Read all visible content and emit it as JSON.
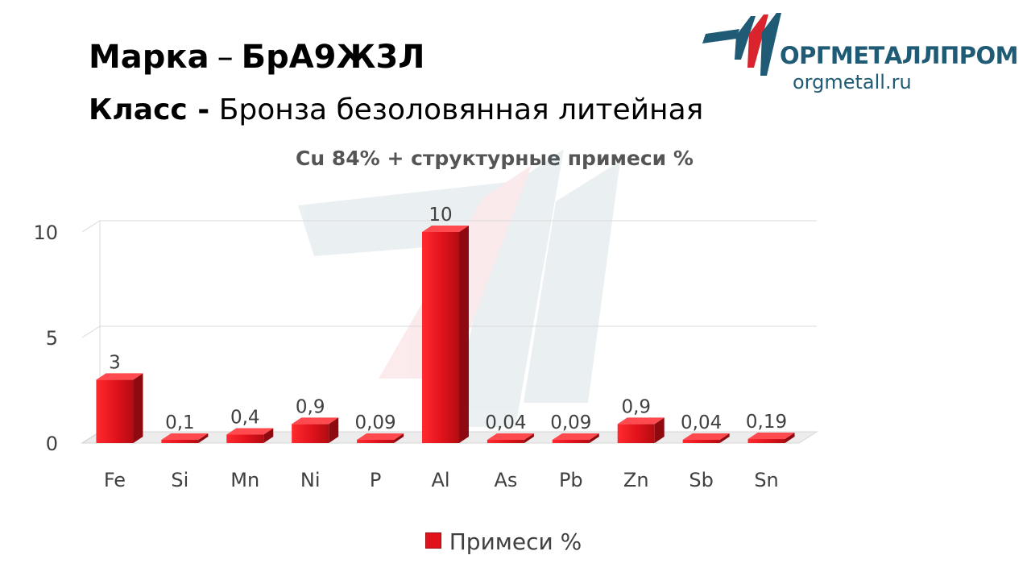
{
  "header": {
    "marka_label": "Марка",
    "marka_dash": "–",
    "marka_value": "БрА9Ж3Л",
    "class_label": "Класс -",
    "class_value": "Бронза безоловянная литейная"
  },
  "logo": {
    "name": "ОРГМЕТАЛЛПРОМ",
    "url": "orgmetall.ru",
    "icon": "orgmetallprom-logo-icon",
    "colors": {
      "blue": "#1f5b75",
      "red": "#d9232d"
    }
  },
  "chart_data": {
    "type": "bar",
    "title": "Cu 84% + структурные примеси %",
    "categories": [
      "Fe",
      "Si",
      "Mn",
      "Ni",
      "P",
      "Al",
      "As",
      "Pb",
      "Zn",
      "Sb",
      "Sn"
    ],
    "series": [
      {
        "name": "Примеси %",
        "values": [
          3,
          0.1,
          0.4,
          0.9,
          0.09,
          10,
          0.04,
          0.09,
          0.9,
          0.04,
          0.19
        ],
        "labels": [
          "3",
          "0,1",
          "0,4",
          "0,9",
          "0,09",
          "10",
          "0,04",
          "0,09",
          "0,9",
          "0,04",
          "0,19"
        ],
        "color": "#e0121b"
      }
    ],
    "yticks": [
      0,
      5,
      10
    ],
    "ylim": [
      0,
      10
    ],
    "grid": true,
    "legend_position": "bottom",
    "style": "3d"
  }
}
